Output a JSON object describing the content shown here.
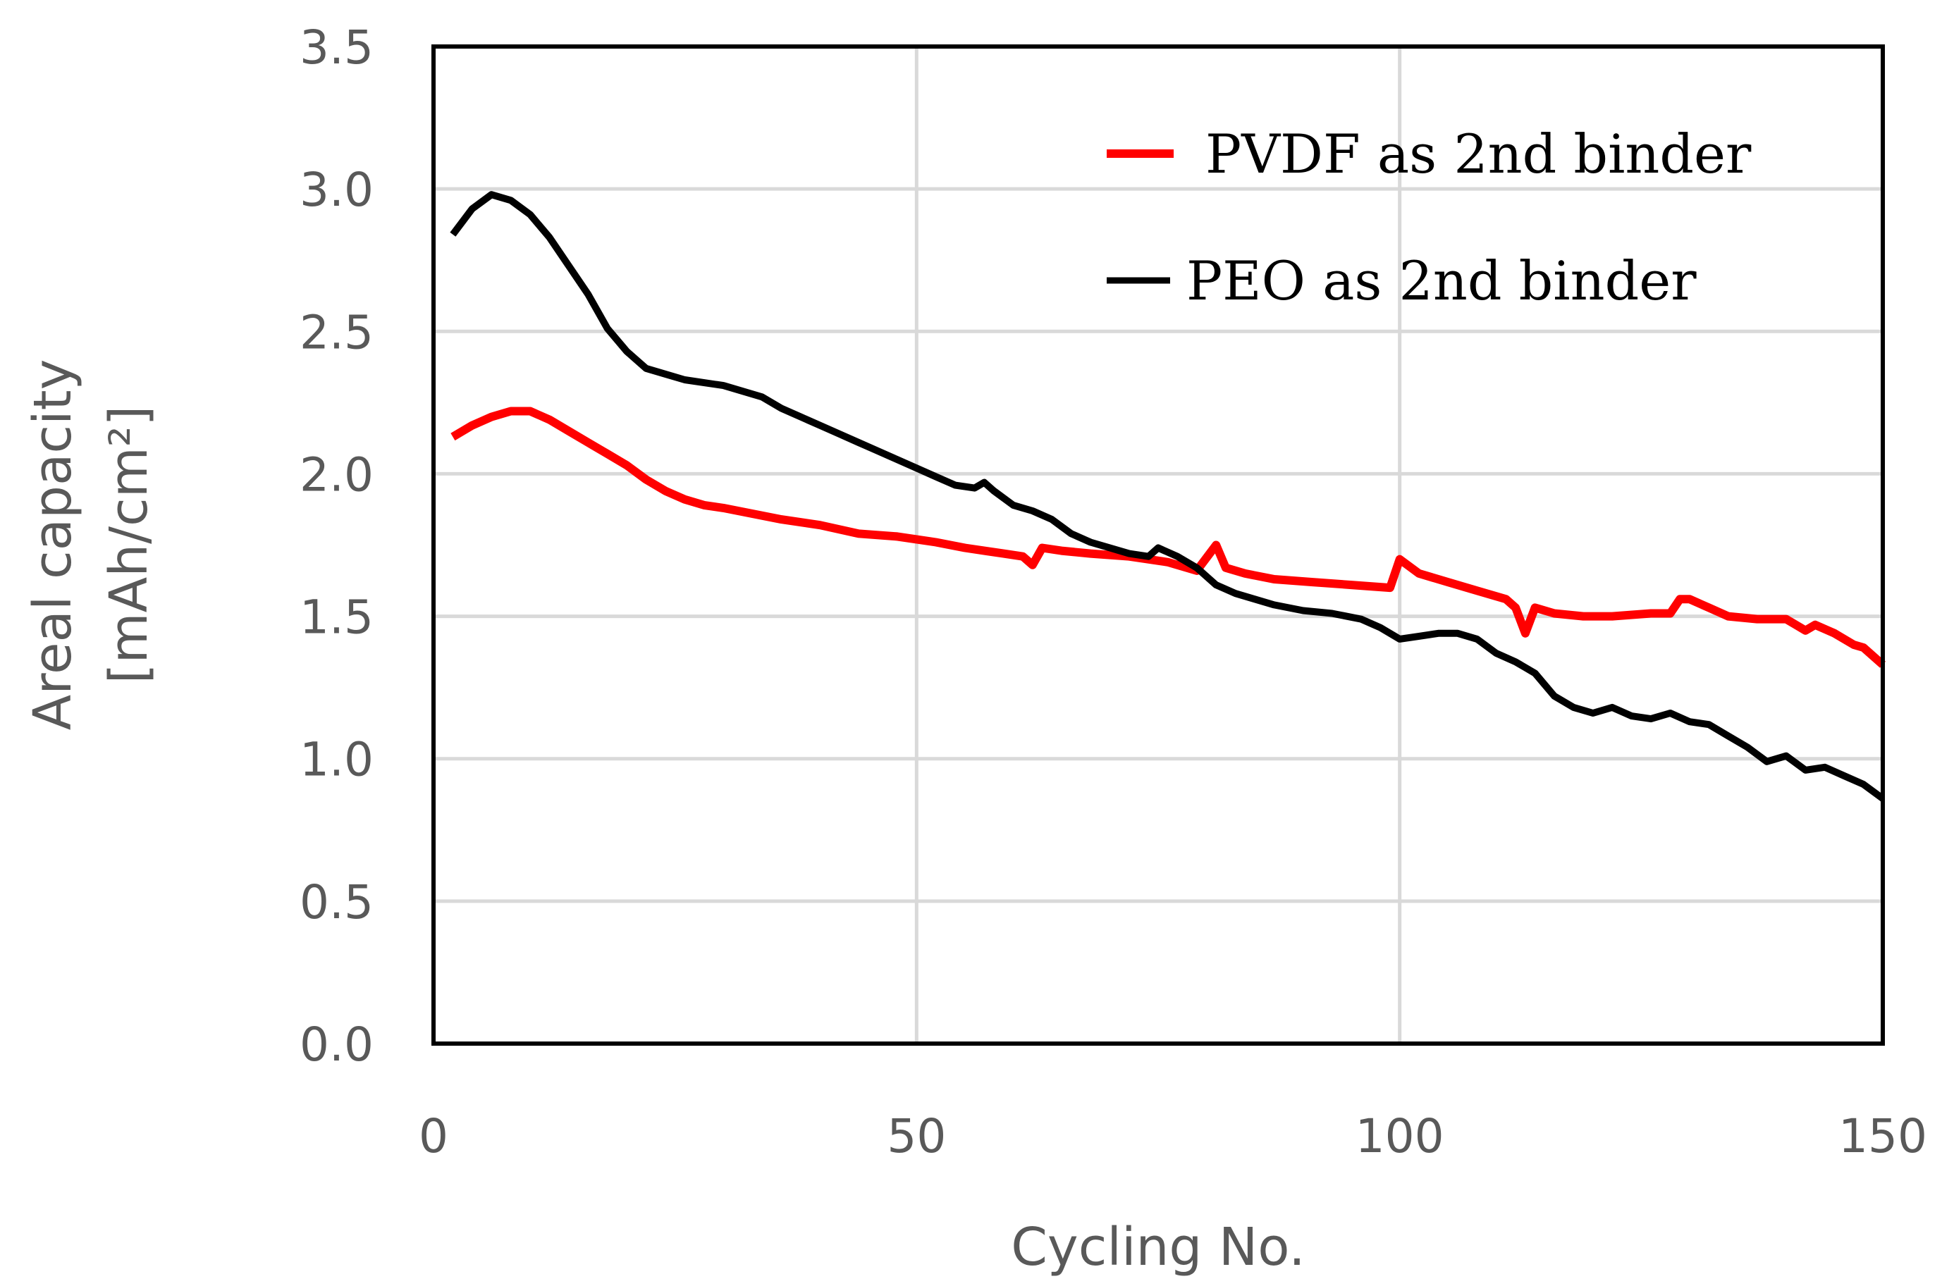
{
  "colors": {
    "pvdf": "#ff0000",
    "peo": "#000000",
    "grid": "#d9d9d9",
    "axis_text": "#595959",
    "frame": "#000000"
  },
  "chart_data": {
    "type": "line",
    "title": "",
    "xlabel": "Cycling No.",
    "ylabel_line1": "Areal capacity",
    "ylabel_line2": "[mAh/cm²]",
    "xlim": [
      0,
      150
    ],
    "ylim": [
      0,
      3.5
    ],
    "xticks": [
      "0",
      "50",
      "100",
      "150"
    ],
    "xtick_values": [
      0,
      50,
      100,
      150
    ],
    "yticks": [
      "0.0",
      "0.5",
      "1.0",
      "1.5",
      "2.0",
      "2.5",
      "3.0",
      "3.5"
    ],
    "ytick_values": [
      0,
      0.5,
      1.0,
      1.5,
      2.0,
      2.5,
      3.0,
      3.5
    ],
    "grid": true,
    "legend_position": "top-right",
    "series": [
      {
        "name": "PVDF as 2nd binder",
        "color_key": "pvdf",
        "points": [
          [
            2,
            2.13
          ],
          [
            4,
            2.17
          ],
          [
            6,
            2.2
          ],
          [
            8,
            2.22
          ],
          [
            10,
            2.22
          ],
          [
            12,
            2.19
          ],
          [
            14,
            2.15
          ],
          [
            16,
            2.11
          ],
          [
            18,
            2.07
          ],
          [
            20,
            2.03
          ],
          [
            22,
            1.98
          ],
          [
            24,
            1.94
          ],
          [
            26,
            1.91
          ],
          [
            28,
            1.89
          ],
          [
            30,
            1.88
          ],
          [
            33,
            1.86
          ],
          [
            36,
            1.84
          ],
          [
            40,
            1.82
          ],
          [
            44,
            1.79
          ],
          [
            48,
            1.78
          ],
          [
            52,
            1.76
          ],
          [
            55,
            1.74
          ],
          [
            57,
            1.73
          ],
          [
            59,
            1.72
          ],
          [
            61,
            1.71
          ],
          [
            62,
            1.68
          ],
          [
            63,
            1.74
          ],
          [
            65,
            1.73
          ],
          [
            68,
            1.72
          ],
          [
            72,
            1.71
          ],
          [
            76,
            1.69
          ],
          [
            79,
            1.66
          ],
          [
            81,
            1.75
          ],
          [
            82,
            1.67
          ],
          [
            84,
            1.65
          ],
          [
            87,
            1.63
          ],
          [
            91,
            1.62
          ],
          [
            95,
            1.61
          ],
          [
            99,
            1.6
          ],
          [
            100,
            1.7
          ],
          [
            102,
            1.65
          ],
          [
            105,
            1.62
          ],
          [
            108,
            1.59
          ],
          [
            111,
            1.56
          ],
          [
            112,
            1.53
          ],
          [
            113,
            1.44
          ],
          [
            114,
            1.53
          ],
          [
            116,
            1.51
          ],
          [
            119,
            1.5
          ],
          [
            122,
            1.5
          ],
          [
            126,
            1.51
          ],
          [
            128,
            1.51
          ],
          [
            129,
            1.56
          ],
          [
            130,
            1.56
          ],
          [
            132,
            1.53
          ],
          [
            134,
            1.5
          ],
          [
            137,
            1.49
          ],
          [
            140,
            1.49
          ],
          [
            142,
            1.45
          ],
          [
            143,
            1.47
          ],
          [
            145,
            1.44
          ],
          [
            147,
            1.4
          ],
          [
            148,
            1.39
          ],
          [
            150,
            1.33
          ]
        ]
      },
      {
        "name": "PEO as 2nd binder",
        "color_key": "peo",
        "points": [
          [
            2,
            2.84
          ],
          [
            4,
            2.93
          ],
          [
            6,
            2.98
          ],
          [
            8,
            2.96
          ],
          [
            10,
            2.91
          ],
          [
            12,
            2.83
          ],
          [
            14,
            2.73
          ],
          [
            16,
            2.63
          ],
          [
            18,
            2.51
          ],
          [
            20,
            2.43
          ],
          [
            22,
            2.37
          ],
          [
            24,
            2.35
          ],
          [
            26,
            2.33
          ],
          [
            28,
            2.32
          ],
          [
            30,
            2.31
          ],
          [
            32,
            2.29
          ],
          [
            34,
            2.27
          ],
          [
            36,
            2.23
          ],
          [
            38,
            2.2
          ],
          [
            40,
            2.17
          ],
          [
            42,
            2.14
          ],
          [
            44,
            2.11
          ],
          [
            46,
            2.08
          ],
          [
            48,
            2.05
          ],
          [
            50,
            2.02
          ],
          [
            52,
            1.99
          ],
          [
            54,
            1.96
          ],
          [
            56,
            1.95
          ],
          [
            57,
            1.97
          ],
          [
            58,
            1.94
          ],
          [
            60,
            1.89
          ],
          [
            62,
            1.87
          ],
          [
            64,
            1.84
          ],
          [
            66,
            1.79
          ],
          [
            68,
            1.76
          ],
          [
            70,
            1.74
          ],
          [
            72,
            1.72
          ],
          [
            74,
            1.71
          ],
          [
            75,
            1.74
          ],
          [
            77,
            1.71
          ],
          [
            79,
            1.67
          ],
          [
            81,
            1.61
          ],
          [
            83,
            1.58
          ],
          [
            85,
            1.56
          ],
          [
            87,
            1.54
          ],
          [
            90,
            1.52
          ],
          [
            93,
            1.51
          ],
          [
            96,
            1.49
          ],
          [
            98,
            1.46
          ],
          [
            100,
            1.42
          ],
          [
            102,
            1.43
          ],
          [
            104,
            1.44
          ],
          [
            106,
            1.44
          ],
          [
            108,
            1.42
          ],
          [
            110,
            1.37
          ],
          [
            112,
            1.34
          ],
          [
            114,
            1.3
          ],
          [
            116,
            1.22
          ],
          [
            118,
            1.18
          ],
          [
            120,
            1.16
          ],
          [
            122,
            1.18
          ],
          [
            124,
            1.15
          ],
          [
            126,
            1.14
          ],
          [
            128,
            1.16
          ],
          [
            130,
            1.13
          ],
          [
            132,
            1.12
          ],
          [
            134,
            1.08
          ],
          [
            136,
            1.04
          ],
          [
            138,
            0.99
          ],
          [
            140,
            1.01
          ],
          [
            142,
            0.96
          ],
          [
            144,
            0.97
          ],
          [
            146,
            0.94
          ],
          [
            148,
            0.91
          ],
          [
            150,
            0.86
          ]
        ]
      }
    ]
  }
}
